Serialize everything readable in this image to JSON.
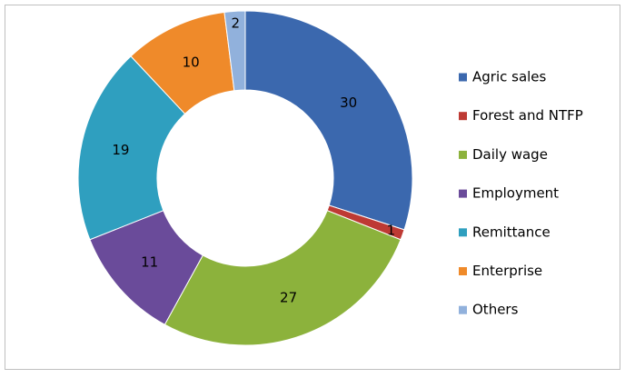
{
  "chart_data": {
    "type": "donut",
    "categories": [
      "Agric sales",
      "Forest and NTFP",
      "Daily wage",
      "Employment",
      "Remittance",
      "Enterprise",
      "Others"
    ],
    "values": [
      30,
      1,
      27,
      11,
      19,
      10,
      2
    ],
    "colors": [
      "#3b68ae",
      "#be3a34",
      "#8cb23c",
      "#6a4b9a",
      "#2f9fbf",
      "#ef8a2a",
      "#91b1dc"
    ],
    "legend": "right"
  }
}
